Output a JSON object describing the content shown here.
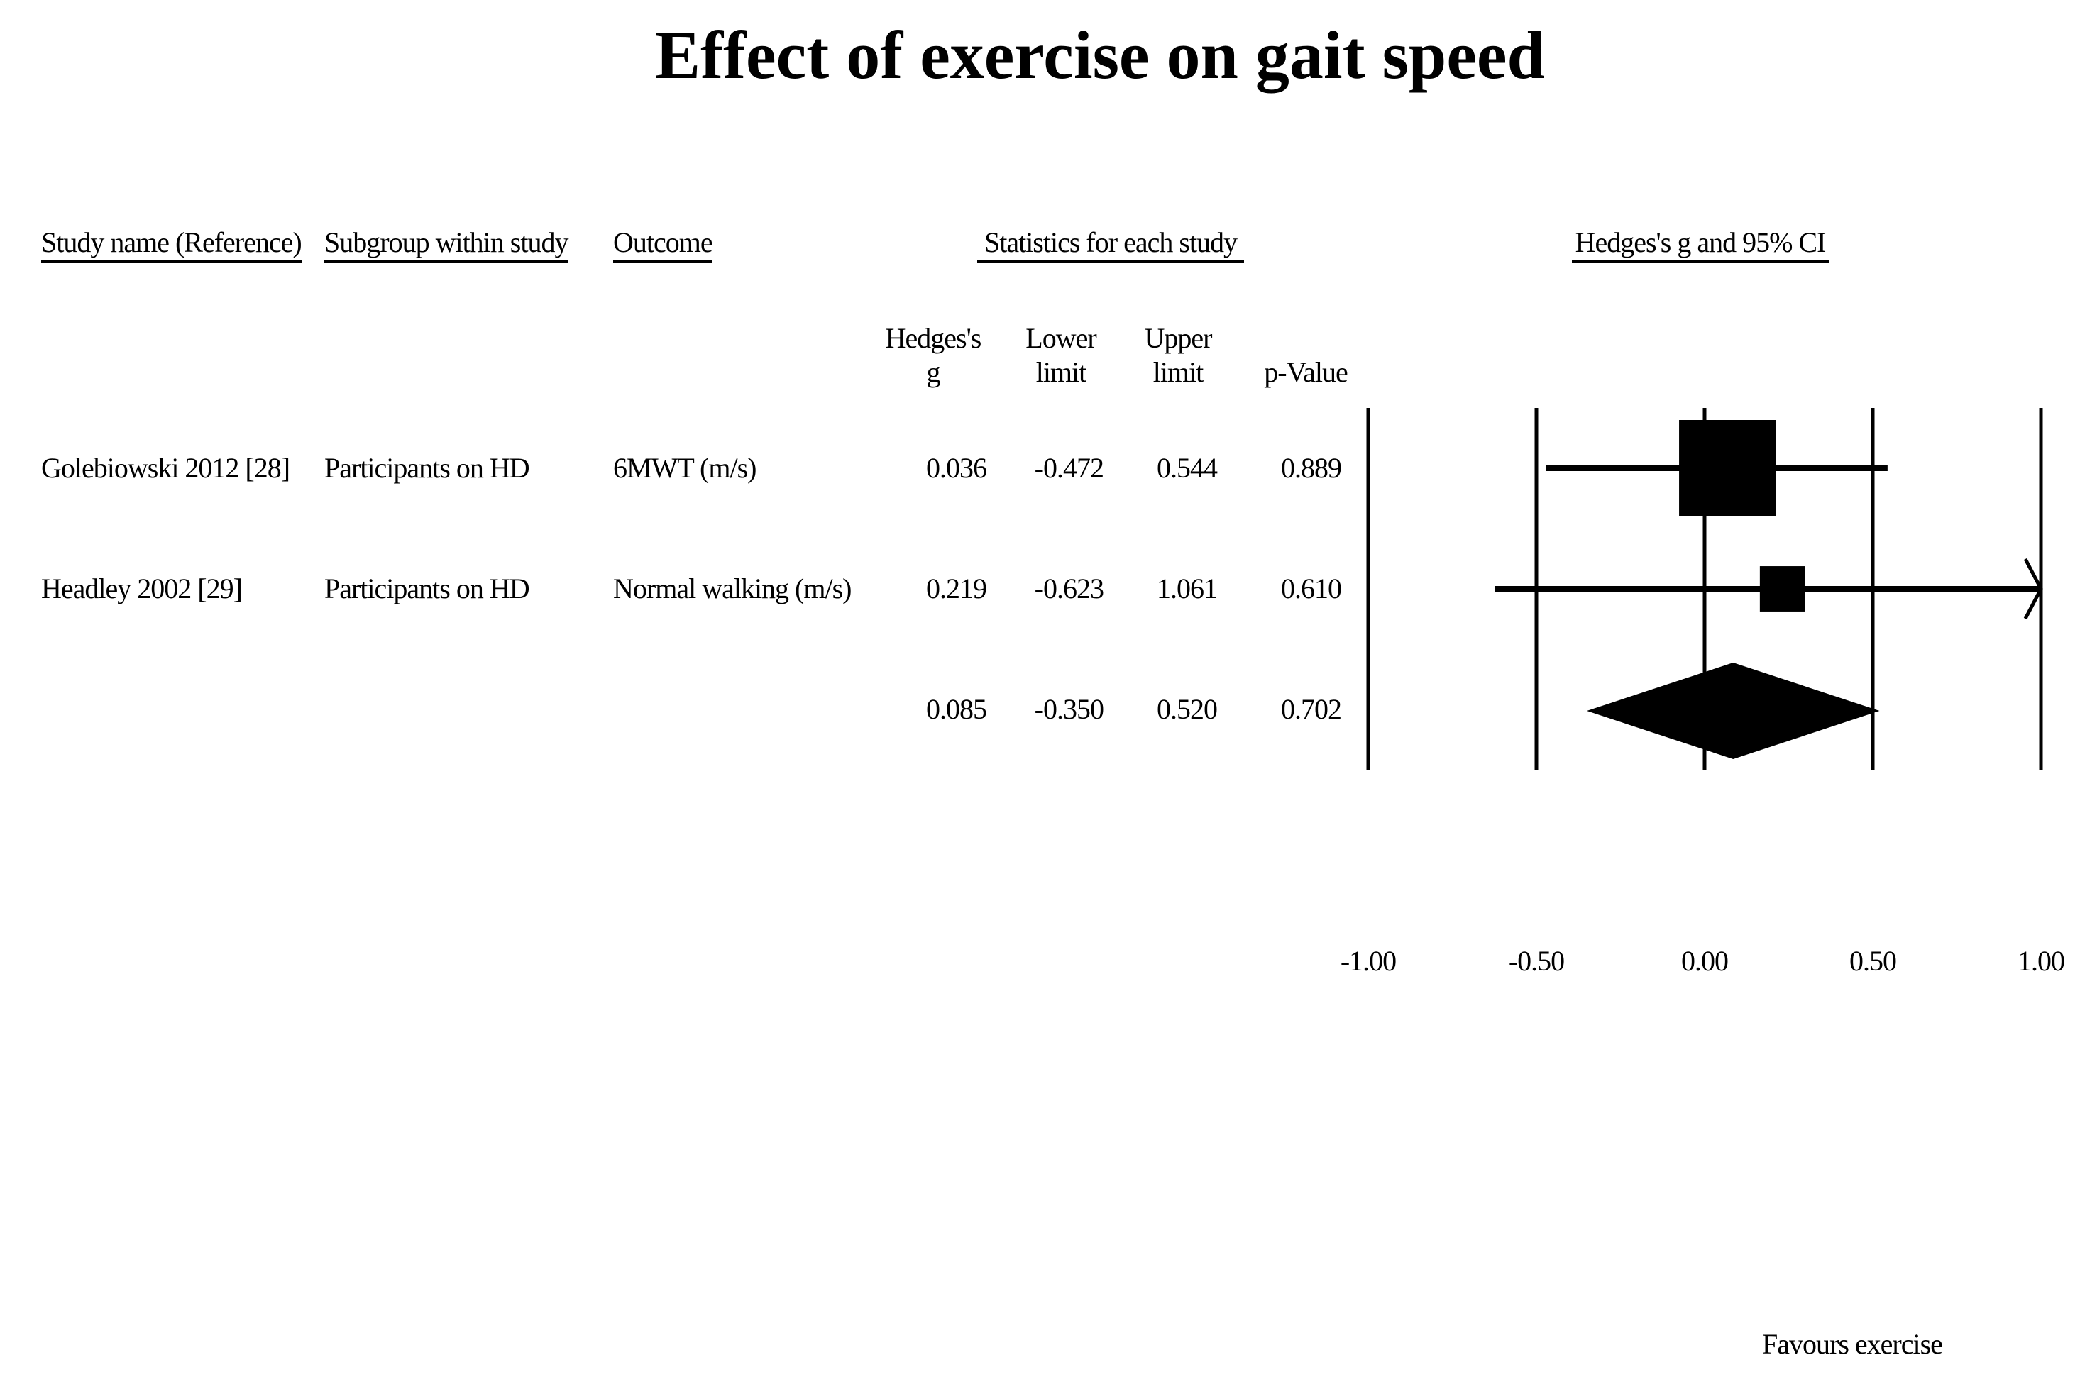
{
  "title": "Effect of exercise on gait speed",
  "headers": {
    "study": "Study name (Reference)",
    "subgroup": "Subgroup within study",
    "outcome": "Outcome",
    "statistics": "Statistics for each study",
    "plot": "Hedges's g and 95% CI"
  },
  "stat_columns": {
    "g_line1": "Hedges's",
    "g_line2": "g",
    "lower_line1": "Lower",
    "lower_line2": "limit",
    "upper_line1": "Upper",
    "upper_line2": "limit",
    "p": "p-Value"
  },
  "rows": [
    {
      "study": "Golebiowski 2012 [28]",
      "subgroup": "Participants on HD",
      "outcome": "6MWT (m/s)",
      "g": "0.036",
      "lower": "-0.472",
      "upper": "0.544",
      "p": "0.889"
    },
    {
      "study": "Headley 2002 [29]",
      "subgroup": "Participants on HD",
      "outcome": "Normal walking (m/s)",
      "g": "0.219",
      "lower": "-0.623",
      "upper": "1.061",
      "p": "0.610"
    }
  ],
  "summary": {
    "g": "0.085",
    "lower": "-0.350",
    "upper": "0.520",
    "p": "0.702"
  },
  "axis": {
    "ticks": [
      "-1.00",
      "-0.50",
      "0.00",
      "0.50",
      "1.00"
    ],
    "xlabel": "Favours exercise"
  },
  "chart_data": {
    "type": "forest",
    "title": "Effect of exercise on gait speed",
    "xlabel": "Favours exercise",
    "xlim": [
      -1,
      1
    ],
    "xticks": [
      -1,
      -0.5,
      0,
      0.5,
      1
    ],
    "effect_measure": "Hedges's g and 95% CI",
    "studies": [
      {
        "name": "Golebiowski 2012 [28]",
        "g": 0.036,
        "lower": -0.472,
        "upper": 0.544,
        "p": 0.889,
        "weight": 0.62
      },
      {
        "name": "Headley 2002 [29]",
        "g": 0.219,
        "lower": -0.623,
        "upper": 1.061,
        "p": 0.61,
        "weight": 0.38,
        "upper_clipped": true
      }
    ],
    "pooled": {
      "g": 0.085,
      "lower": -0.35,
      "upper": 0.52,
      "p": 0.702
    }
  }
}
